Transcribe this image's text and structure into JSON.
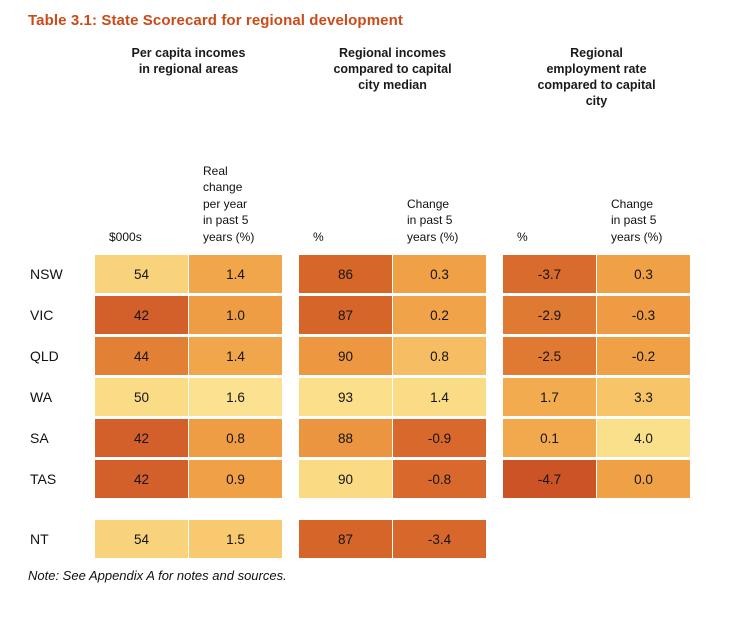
{
  "title": "Table 3.1: State Scorecard for regional development",
  "note": "Note: See Appendix A for notes and sources.",
  "accent_color": "#cc4a17",
  "header": {
    "groups": [
      "Per capita incomes\nin regional areas",
      "Regional incomes\ncompared to capital\ncity median",
      "Regional\nemployment rate\ncompared to capital\ncity"
    ],
    "sub": [
      "$000s",
      "Real\nchange\nper year\nin past 5\nyears (%)",
      "%",
      "Change\nin past 5\nyears (%)",
      "%",
      "Change\nin past 5\nyears (%)"
    ]
  },
  "chart_data": {
    "type": "heatmap",
    "title": "Table 3.1: State Scorecard for regional development",
    "note": "Note: See Appendix A for notes and sources.",
    "column_groups": [
      {
        "label": "Per capita incomes in regional areas",
        "columns": [
          "$000s",
          "Real change per year in past 5 years (%)"
        ]
      },
      {
        "label": "Regional incomes compared to capital city median",
        "columns": [
          "%",
          "Change in past 5 years (%)"
        ]
      },
      {
        "label": "Regional employment rate compared to capital city",
        "columns": [
          "%",
          "Change in past 5 years (%)"
        ]
      }
    ],
    "color_scale": {
      "light": "#fce290",
      "dark": "#cb5326"
    },
    "rows": [
      {
        "label": "NSW",
        "values": [
          "54",
          "1.4",
          "86",
          "0.3",
          "-3.7",
          "0.3"
        ],
        "colors": [
          "#f9d37c",
          "#f2a64b",
          "#d76629",
          "#f0a146",
          "#d96b2c",
          "#f0a146"
        ],
        "gap_before": false
      },
      {
        "label": "VIC",
        "values": [
          "42",
          "1.0",
          "87",
          "0.2",
          "-2.9",
          "-0.3"
        ],
        "colors": [
          "#d35f2b",
          "#ef9d44",
          "#d56529",
          "#f1a349",
          "#df7a33",
          "#ee9b43"
        ],
        "gap_before": false
      },
      {
        "label": "QLD",
        "values": [
          "44",
          "1.4",
          "90",
          "0.8",
          "-2.5",
          "-0.2"
        ],
        "colors": [
          "#e28036",
          "#f2a64b",
          "#ed9741",
          "#f6bd62",
          "#e07a33",
          "#f0a146"
        ],
        "gap_before": false
      },
      {
        "label": "WA",
        "values": [
          "50",
          "1.6",
          "93",
          "1.4",
          "1.7",
          "3.3"
        ],
        "colors": [
          "#fbdc86",
          "#fce290",
          "#fbdf8b",
          "#fbdc86",
          "#f3ab4f",
          "#f7c468"
        ],
        "gap_before": false
      },
      {
        "label": "SA",
        "values": [
          "42",
          "0.8",
          "88",
          "-0.9",
          "0.1",
          "4.0"
        ],
        "colors": [
          "#d35f2b",
          "#ef9d44",
          "#ec9540",
          "#d8682c",
          "#f2a84d",
          "#fbe08c"
        ],
        "gap_before": false
      },
      {
        "label": "TAS",
        "values": [
          "42",
          "0.9",
          "90",
          "-0.8",
          "-4.7",
          "0.0"
        ],
        "colors": [
          "#d35f2b",
          "#f0a045",
          "#fbda84",
          "#d8682c",
          "#cb5326",
          "#f0a146"
        ],
        "gap_before": false
      },
      {
        "label": "NT",
        "values": [
          "54",
          "1.5",
          "87",
          "-3.4",
          null,
          null
        ],
        "colors": [
          "#f9d37c",
          "#f8c96e",
          "#d56529",
          "#d8672b",
          null,
          null
        ],
        "gap_before": true
      }
    ]
  }
}
